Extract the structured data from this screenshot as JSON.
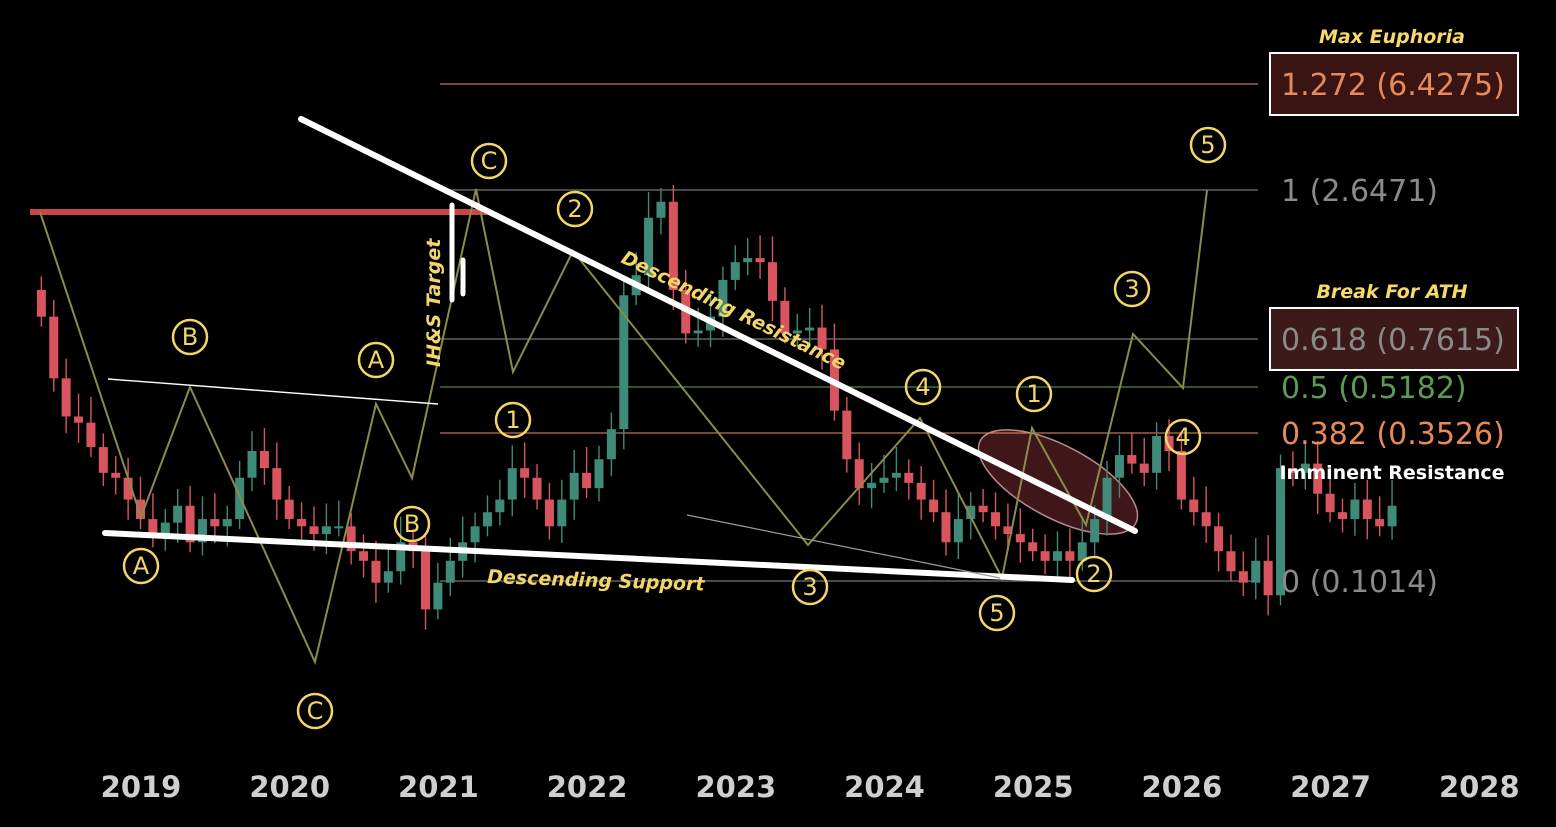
{
  "chart_data": {
    "type": "candlestick",
    "x_axis": {
      "ticks": [
        "2019",
        "2020",
        "2021",
        "2022",
        "2023",
        "2024",
        "2025",
        "2026",
        "2027",
        "2028"
      ],
      "range": [
        2018.2,
        2028.3
      ]
    },
    "y_scale": "log",
    "fib_levels": [
      {
        "label": "1.272 (6.4275)",
        "ratio": 1.272,
        "value": 6.4275,
        "color": "#e8895a",
        "boxed": true,
        "heading": "Max Euphoria"
      },
      {
        "label": "1 (2.6471)",
        "ratio": 1,
        "value": 2.6471,
        "color": "#8a8a8a"
      },
      {
        "label": "0.618 (0.7615)",
        "ratio": 0.618,
        "value": 0.7615,
        "color": "#8a8a8a",
        "boxed": true,
        "heading": "Break For ATH"
      },
      {
        "label": "0.5 (0.5182)",
        "ratio": 0.5,
        "value": 0.5182,
        "color": "#5d9a56"
      },
      {
        "label": "0.382 (0.3526)",
        "ratio": 0.382,
        "value": 0.3526,
        "color": "#e8895a",
        "note": "Imminent Resistance"
      },
      {
        "label": "0 (0.1014)",
        "ratio": 0,
        "value": 0.1014,
        "color": "#8a8a8a"
      }
    ],
    "trendlines": [
      {
        "label": "Descending Resistance"
      },
      {
        "label": "Descending Support"
      },
      {
        "label": "IH&S Target"
      }
    ],
    "waves": [
      {
        "label": "A",
        "x": 2019.0,
        "y": 0.092
      },
      {
        "label": "B",
        "x": 2019.33,
        "y": 0.74
      },
      {
        "label": "C",
        "x": 2020.0,
        "y": 0.017
      },
      {
        "label": "A",
        "x": 2020.8,
        "y": 0.56
      },
      {
        "label": "B",
        "x": 2020.88,
        "y": 0.147
      },
      {
        "label": "C",
        "x": 2021.25,
        "y": 2.9
      },
      {
        "label": "1",
        "x": 2021.5,
        "y": 0.41
      },
      {
        "label": "2",
        "x": 2021.9,
        "y": 2.05
      },
      {
        "label": "3",
        "x": 2023.5,
        "y": 0.095
      },
      {
        "label": "4",
        "x": 2024.33,
        "y": 0.48
      },
      {
        "label": "5",
        "x": 2024.7,
        "y": 0.075
      },
      {
        "label": "1",
        "x": 2024.95,
        "y": 0.47
      },
      {
        "label": "2",
        "x": 2025.4,
        "y": 0.103
      },
      {
        "label": "3",
        "x": 2025.65,
        "y": 1.05
      },
      {
        "label": "4",
        "x": 2025.95,
        "y": 0.36
      },
      {
        "label": "5",
        "x": 2026.2,
        "y": 3.6
      }
    ]
  }
}
